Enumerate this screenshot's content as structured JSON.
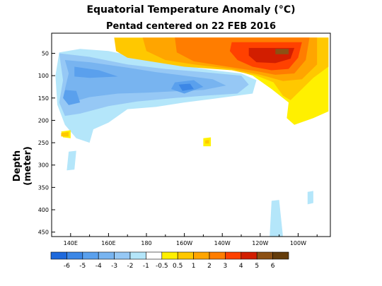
{
  "chart_data": {
    "type": "heatmap",
    "title": "Equatorial Temperature Anomaly (°C)",
    "subtitle": "Pentad centered on 22 FEB 2016",
    "ylabel": "Depth (meter)",
    "xlabel": "",
    "x_ticks": [
      {
        "lon": 140,
        "label": "140E"
      },
      {
        "lon": 160,
        "label": "160E"
      },
      {
        "lon": 180,
        "label": "180"
      },
      {
        "lon": 200,
        "label": "160W"
      },
      {
        "lon": 220,
        "label": "140W"
      },
      {
        "lon": 240,
        "label": "120W"
      },
      {
        "lon": 260,
        "label": "100W"
      }
    ],
    "y_ticks": [
      50,
      100,
      150,
      200,
      250,
      300,
      350,
      400,
      450
    ],
    "xlim_lon": [
      130,
      277
    ],
    "ylim_depth": [
      5,
      460
    ],
    "legend_labels": [
      "-6",
      "-5",
      "-4",
      "-3",
      "-2",
      "-1",
      "-0.5",
      "0.5",
      "1",
      "2",
      "3",
      "4",
      "5",
      "6"
    ],
    "legend_colors": [
      "#1e69dc",
      "#3c87e6",
      "#5aa0ed",
      "#78b4f0",
      "#96c8f5",
      "#b4e6fa",
      "#ffffff",
      "#fff000",
      "#ffc800",
      "#ffa500",
      "#ff7d00",
      "#ff4100",
      "#d21e00",
      "#8c5014",
      "#643c0a"
    ],
    "regions": [
      {
        "level": "-1",
        "color": "#b4e6fa",
        "pts": [
          [
            134,
            48
          ],
          [
            145,
            40
          ],
          [
            160,
            45
          ],
          [
            180,
            62
          ],
          [
            200,
            78
          ],
          [
            215,
            88
          ],
          [
            230,
            95
          ],
          [
            238,
            110
          ],
          [
            236,
            140
          ],
          [
            215,
            152
          ],
          [
            200,
            160
          ],
          [
            185,
            170
          ],
          [
            170,
            175
          ],
          [
            160,
            205
          ],
          [
            152,
            220
          ],
          [
            150,
            250
          ],
          [
            143,
            240
          ],
          [
            137,
            210
          ],
          [
            133,
            165
          ],
          [
            132,
            100
          ]
        ]
      },
      {
        "level": "-1",
        "color": "#b4e6fa",
        "pts": [
          [
            139,
            270
          ],
          [
            143,
            268
          ],
          [
            142,
            310
          ],
          [
            138,
            312
          ]
        ]
      },
      {
        "level": "-1",
        "color": "#b4e6fa",
        "pts": [
          [
            246,
            380
          ],
          [
            250,
            378
          ],
          [
            252,
            460
          ],
          [
            245,
            460
          ]
        ]
      },
      {
        "level": "-1",
        "color": "#b4e6fa",
        "pts": [
          [
            265,
            360
          ],
          [
            268,
            358
          ],
          [
            268,
            385
          ],
          [
            265,
            388
          ]
        ]
      },
      {
        "level": "-2",
        "color": "#96c8f5",
        "pts": [
          [
            134,
            50
          ],
          [
            150,
            58
          ],
          [
            170,
            75
          ],
          [
            190,
            85
          ],
          [
            210,
            92
          ],
          [
            230,
            100
          ],
          [
            234,
            120
          ],
          [
            228,
            140
          ],
          [
            210,
            145
          ],
          [
            195,
            150
          ],
          [
            175,
            158
          ],
          [
            160,
            168
          ],
          [
            145,
            185
          ],
          [
            137,
            190
          ],
          [
            134,
            160
          ],
          [
            136,
            110
          ]
        ]
      },
      {
        "level": "-3",
        "color": "#78b4f0",
        "pts": [
          [
            137,
            65
          ],
          [
            150,
            70
          ],
          [
            170,
            82
          ],
          [
            185,
            92
          ],
          [
            200,
            100
          ],
          [
            215,
            108
          ],
          [
            222,
            122
          ],
          [
            210,
            132
          ],
          [
            195,
            135
          ],
          [
            180,
            138
          ],
          [
            165,
            140
          ],
          [
            150,
            148
          ],
          [
            140,
            160
          ],
          [
            137,
            130
          ],
          [
            139,
            95
          ]
        ]
      },
      {
        "level": "-4",
        "color": "#5aa0ed",
        "pts": [
          [
            142,
            80
          ],
          [
            155,
            88
          ],
          [
            165,
            102
          ],
          [
            150,
            105
          ],
          [
            142,
            102
          ]
        ]
      },
      {
        "level": "-4",
        "color": "#5aa0ed",
        "pts": [
          [
            195,
            115
          ],
          [
            205,
            110
          ],
          [
            210,
            125
          ],
          [
            200,
            140
          ],
          [
            193,
            130
          ]
        ]
      },
      {
        "level": "-4",
        "color": "#5aa0ed",
        "pts": [
          [
            137,
            132
          ],
          [
            143,
            134
          ],
          [
            145,
            160
          ],
          [
            139,
            166
          ],
          [
            136,
            150
          ]
        ]
      },
      {
        "level": "-5",
        "color": "#3c87e6",
        "pts": [
          [
            197,
            120
          ],
          [
            203,
            118
          ],
          [
            205,
            130
          ],
          [
            199,
            134
          ]
        ]
      },
      {
        "level": "0.5",
        "color": "#fff000",
        "pts": [
          [
            135,
            225
          ],
          [
            140,
            222
          ],
          [
            140,
            240
          ],
          [
            136,
            238
          ]
        ]
      },
      {
        "level": "0.5",
        "color": "#fff000",
        "pts": [
          [
            210,
            240
          ],
          [
            214,
            238
          ],
          [
            214,
            258
          ],
          [
            210,
            258
          ]
        ]
      },
      {
        "level": "1",
        "color": "#ffc800",
        "pts": [
          [
            135,
            228
          ],
          [
            139,
            226
          ],
          [
            139,
            236
          ],
          [
            135,
            236
          ]
        ]
      },
      {
        "level": "1",
        "color": "#ffc800",
        "pts": [
          [
            211,
            245
          ],
          [
            213,
            244
          ],
          [
            213,
            252
          ],
          [
            211,
            252
          ]
        ]
      },
      {
        "level": "0.5",
        "color": "#fff000",
        "pts": [
          [
            190,
            15
          ],
          [
            276,
            15
          ],
          [
            276,
            180
          ],
          [
            268,
            195
          ],
          [
            258,
            210
          ],
          [
            254,
            195
          ],
          [
            255,
            160
          ],
          [
            246,
            130
          ],
          [
            236,
            100
          ],
          [
            225,
            85
          ],
          [
            200,
            75
          ],
          [
            190,
            60
          ]
        ]
      },
      {
        "level": "1",
        "color": "#ffc800",
        "pts": [
          [
            163,
            15
          ],
          [
            276,
            15
          ],
          [
            276,
            80
          ],
          [
            268,
            105
          ],
          [
            262,
            130
          ],
          [
            256,
            155
          ],
          [
            252,
            145
          ],
          [
            247,
            115
          ],
          [
            238,
            100
          ],
          [
            225,
            88
          ],
          [
            200,
            80
          ],
          [
            185,
            70
          ],
          [
            170,
            60
          ],
          [
            164,
            45
          ]
        ]
      },
      {
        "level": "2",
        "color": "#ffa500",
        "pts": [
          [
            178,
            15
          ],
          [
            270,
            15
          ],
          [
            270,
            75
          ],
          [
            262,
            108
          ],
          [
            252,
            112
          ],
          [
            240,
            98
          ],
          [
            225,
            85
          ],
          [
            205,
            75
          ],
          [
            190,
            65
          ],
          [
            180,
            45
          ]
        ]
      },
      {
        "level": "3",
        "color": "#ff7d00",
        "pts": [
          [
            195,
            15
          ],
          [
            266,
            15
          ],
          [
            264,
            65
          ],
          [
            258,
            95
          ],
          [
            248,
            98
          ],
          [
            238,
            90
          ],
          [
            220,
            78
          ],
          [
            205,
            68
          ],
          [
            196,
            48
          ]
        ]
      },
      {
        "level": "4",
        "color": "#ff4100",
        "pts": [
          [
            225,
            25
          ],
          [
            262,
            25
          ],
          [
            260,
            60
          ],
          [
            255,
            85
          ],
          [
            246,
            88
          ],
          [
            236,
            80
          ],
          [
            228,
            65
          ],
          [
            224,
            45
          ]
        ]
      },
      {
        "level": "5",
        "color": "#d21e00",
        "pts": [
          [
            234,
            38
          ],
          [
            258,
            38
          ],
          [
            256,
            62
          ],
          [
            248,
            72
          ],
          [
            238,
            70
          ],
          [
            234,
            55
          ]
        ]
      },
      {
        "level": "6",
        "color": "#8c5014",
        "pts": [
          [
            248,
            40
          ],
          [
            255,
            40
          ],
          [
            255,
            52
          ],
          [
            248,
            52
          ]
        ]
      }
    ]
  }
}
